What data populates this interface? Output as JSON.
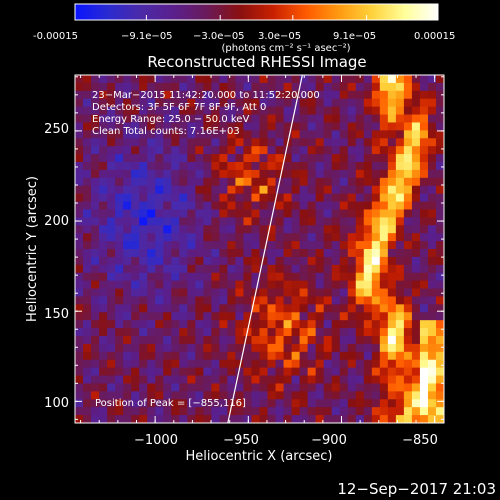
{
  "colorbar": {
    "tick_labels": [
      "-0.00015",
      "−9.1e−05",
      "−3.0e−05",
      "3.0e−05",
      "9.1e−05",
      "0.00015"
    ],
    "tick_values": [
      -0.00015,
      -9.1e-05,
      -3e-05,
      3e-05,
      9.1e-05,
      0.00015
    ],
    "range": [
      -0.00015,
      0.00015
    ],
    "units_label": "(photons cm⁻² s⁻¹ asec⁻²)",
    "colors": [
      "#0a14ff",
      "#2a2ad0",
      "#4b2aa8",
      "#5a1f8c",
      "#6a1a5a",
      "#8a1010",
      "#c82000",
      "#ff5a00",
      "#ff9a10",
      "#ffd23c",
      "#ffff9a",
      "#ffffff"
    ]
  },
  "chart_data": {
    "type": "heatmap",
    "title": "Reconstructed RHESSI Image",
    "xlabel": "Heliocentric X (arcsec)",
    "ylabel": "Heliocentric Y (arcsec)",
    "xlim": [
      -1043,
      -845
    ],
    "ylim": [
      88,
      281
    ],
    "x_ticks": [
      -1000,
      -950,
      -900,
      -850
    ],
    "x_tick_labels": [
      "−1000",
      "−950",
      "−900",
      "−850"
    ],
    "y_ticks": [
      100,
      150,
      200,
      250
    ],
    "y_tick_labels": [
      "100",
      "150",
      "200",
      "250"
    ],
    "annotations": [
      "23−Mar−2015 11:42:20.000 to 11:52:20.000",
      "Detectors: 3F 5F 6F 7F 8F 9F, Att 0",
      "Energy Range: 25.0 − 50.0 keV",
      "Clean    Total counts: 7.16E+03"
    ],
    "peak_label": "Position of Peak = [−855,116]",
    "peak_position": [
      -855,
      116
    ],
    "limb_line": {
      "x": [
        -961,
        -921
      ],
      "y": [
        88,
        281
      ]
    }
  },
  "footer": {
    "timestamp": "12−Sep−2017 21:03"
  }
}
